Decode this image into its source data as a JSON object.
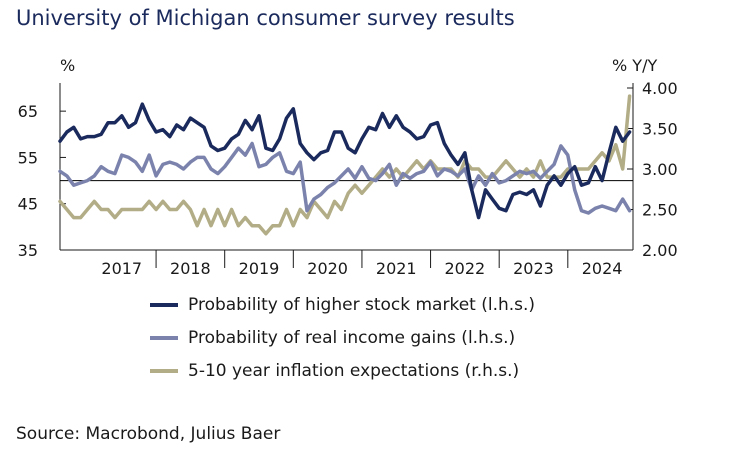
{
  "chart_data": {
    "type": "line",
    "title": "University of Michigan consumer survey results",
    "ylabel_left": "%",
    "ylabel_right": "% Y/Y",
    "ylim_left": [
      35,
      70
    ],
    "ylim_right": [
      2.0,
      4.0
    ],
    "yticks_left": [
      "35",
      "45",
      "55",
      "65"
    ],
    "yticks_right": [
      "2.00",
      "2.50",
      "3.00",
      "3.50",
      "4.00"
    ],
    "reference_line_left": 50,
    "x_range": [
      2016.6,
      2024.95
    ],
    "x_tick_labels": [
      "2017",
      "2018",
      "2019",
      "2020",
      "2021",
      "2022",
      "2023",
      "2024"
    ],
    "series": [
      {
        "name": "Probability of higher stock market (l.h.s.)",
        "color": "#1b2a5c",
        "axis": "left",
        "x": [
          2016.6,
          2016.7,
          2016.8,
          2016.9,
          2017.0,
          2017.1,
          2017.2,
          2017.3,
          2017.4,
          2017.5,
          2017.6,
          2017.7,
          2017.8,
          2017.9,
          2018.0,
          2018.1,
          2018.2,
          2018.3,
          2018.4,
          2018.5,
          2018.6,
          2018.7,
          2018.8,
          2018.9,
          2019.0,
          2019.1,
          2019.2,
          2019.3,
          2019.4,
          2019.5,
          2019.6,
          2019.7,
          2019.8,
          2019.9,
          2020.0,
          2020.1,
          2020.2,
          2020.3,
          2020.4,
          2020.5,
          2020.6,
          2020.7,
          2020.8,
          2020.9,
          2021.0,
          2021.1,
          2021.2,
          2021.3,
          2021.4,
          2021.5,
          2021.6,
          2021.7,
          2021.8,
          2021.9,
          2022.0,
          2022.1,
          2022.2,
          2022.3,
          2022.4,
          2022.5,
          2022.6,
          2022.7,
          2022.8,
          2022.9,
          2023.0,
          2023.1,
          2023.2,
          2023.3,
          2023.4,
          2023.5,
          2023.6,
          2023.7,
          2023.8,
          2023.9,
          2024.0,
          2024.1,
          2024.2,
          2024.3,
          2024.4,
          2024.5,
          2024.6,
          2024.7,
          2024.8,
          2024.9
        ],
        "values": [
          58.5,
          60.5,
          61.5,
          59,
          59.5,
          59.5,
          60,
          62.5,
          62.5,
          64,
          61.5,
          62.5,
          66.5,
          63,
          60.5,
          61,
          59.5,
          62,
          61,
          63.5,
          62.5,
          61.5,
          57.5,
          56.5,
          57,
          59,
          60,
          63,
          61,
          64,
          57,
          56.5,
          59,
          63.5,
          65.5,
          58,
          56,
          54.5,
          56,
          56.5,
          60.5,
          60.5,
          57,
          56,
          59,
          61.5,
          61,
          64.5,
          61.5,
          64,
          61.5,
          60.5,
          59,
          59.5,
          62,
          62.5,
          58,
          55.5,
          53.5,
          56,
          48,
          42,
          48,
          46,
          44,
          43.5,
          47,
          47.5,
          47,
          48,
          44.5,
          49,
          51,
          49,
          51.5,
          53,
          49,
          49.5,
          53,
          50,
          56,
          61.5,
          58.5,
          60.5
        ]
      },
      {
        "name": "Probability of real income gains (l.h.s.)",
        "color": "#7b83ad",
        "axis": "left",
        "x": [
          2016.6,
          2016.7,
          2016.8,
          2016.9,
          2017.0,
          2017.1,
          2017.2,
          2017.3,
          2017.4,
          2017.5,
          2017.6,
          2017.7,
          2017.8,
          2017.9,
          2018.0,
          2018.1,
          2018.2,
          2018.3,
          2018.4,
          2018.5,
          2018.6,
          2018.7,
          2018.8,
          2018.9,
          2019.0,
          2019.1,
          2019.2,
          2019.3,
          2019.4,
          2019.5,
          2019.6,
          2019.7,
          2019.8,
          2019.9,
          2020.0,
          2020.1,
          2020.2,
          2020.3,
          2020.4,
          2020.5,
          2020.6,
          2020.7,
          2020.8,
          2020.9,
          2021.0,
          2021.1,
          2021.2,
          2021.3,
          2021.4,
          2021.5,
          2021.6,
          2021.7,
          2021.8,
          2021.9,
          2022.0,
          2022.1,
          2022.2,
          2022.3,
          2022.4,
          2022.5,
          2022.6,
          2022.7,
          2022.8,
          2022.9,
          2023.0,
          2023.1,
          2023.2,
          2023.3,
          2023.4,
          2023.5,
          2023.6,
          2023.7,
          2023.8,
          2023.9,
          2024.0,
          2024.1,
          2024.2,
          2024.3,
          2024.4,
          2024.5,
          2024.6,
          2024.7,
          2024.8,
          2024.9
        ],
        "values": [
          52,
          51,
          49,
          49.5,
          50,
          51,
          53,
          52,
          51.5,
          55.5,
          55,
          54,
          52,
          55.5,
          51,
          53.5,
          54,
          53.5,
          52.5,
          54,
          55,
          55,
          52.5,
          51.5,
          53,
          55,
          57,
          55.5,
          58,
          53,
          53.5,
          55,
          56,
          52,
          51.5,
          54,
          43.5,
          46,
          47,
          48.5,
          49.5,
          51,
          52.5,
          50.5,
          53,
          50.5,
          50,
          51.5,
          53.5,
          49,
          51.5,
          50.5,
          51.5,
          52,
          54,
          51,
          52.5,
          52,
          51,
          52.5,
          48,
          51,
          49,
          51.5,
          49.5,
          50,
          51,
          52,
          51.5,
          52,
          50.5,
          52,
          53.5,
          57.5,
          55.5,
          48,
          43.5,
          43,
          44,
          44.5,
          44,
          43.5,
          46,
          43.5
        ]
      },
      {
        "name": "5-10 year inflation expectations (r.h.s.)",
        "color": "#b2ad86",
        "axis": "right",
        "x": [
          2016.6,
          2016.7,
          2016.8,
          2016.9,
          2017.0,
          2017.1,
          2017.2,
          2017.3,
          2017.4,
          2017.5,
          2017.6,
          2017.7,
          2017.8,
          2017.9,
          2018.0,
          2018.1,
          2018.2,
          2018.3,
          2018.4,
          2018.5,
          2018.6,
          2018.7,
          2018.8,
          2018.9,
          2019.0,
          2019.1,
          2019.2,
          2019.3,
          2019.4,
          2019.5,
          2019.6,
          2019.7,
          2019.8,
          2019.9,
          2020.0,
          2020.1,
          2020.2,
          2020.3,
          2020.4,
          2020.5,
          2020.6,
          2020.7,
          2020.8,
          2020.9,
          2021.0,
          2021.1,
          2021.2,
          2021.3,
          2021.4,
          2021.5,
          2021.6,
          2021.7,
          2021.8,
          2021.9,
          2022.0,
          2022.1,
          2022.2,
          2022.3,
          2022.4,
          2022.5,
          2022.6,
          2022.7,
          2022.8,
          2022.9,
          2023.0,
          2023.1,
          2023.2,
          2023.3,
          2023.4,
          2023.5,
          2023.6,
          2023.7,
          2023.8,
          2023.9,
          2024.0,
          2024.1,
          2024.2,
          2024.3,
          2024.4,
          2024.5,
          2024.6,
          2024.7,
          2024.8,
          2024.9
        ],
        "values": [
          2.6,
          2.5,
          2.4,
          2.4,
          2.5,
          2.6,
          2.5,
          2.5,
          2.4,
          2.5,
          2.5,
          2.5,
          2.5,
          2.6,
          2.5,
          2.6,
          2.5,
          2.5,
          2.6,
          2.5,
          2.3,
          2.5,
          2.3,
          2.5,
          2.3,
          2.5,
          2.3,
          2.4,
          2.3,
          2.3,
          2.2,
          2.3,
          2.3,
          2.5,
          2.3,
          2.5,
          2.4,
          2.6,
          2.5,
          2.4,
          2.6,
          2.5,
          2.7,
          2.8,
          2.7,
          2.8,
          2.9,
          3.0,
          2.9,
          3.0,
          2.9,
          3.0,
          3.1,
          3.0,
          3.1,
          3.0,
          3.0,
          3.0,
          2.9,
          3.1,
          3.0,
          3.0,
          2.9,
          2.9,
          3.0,
          3.1,
          3.0,
          2.9,
          3.0,
          2.9,
          3.1,
          2.9,
          2.9,
          2.9,
          3.0,
          3.0,
          3.0,
          3.0,
          3.1,
          3.2,
          3.1,
          3.3,
          3.0,
          3.9
        ]
      }
    ],
    "legend_placement": "bottom",
    "grid": false
  },
  "source": "Source: Macrobond, Julius Baer"
}
